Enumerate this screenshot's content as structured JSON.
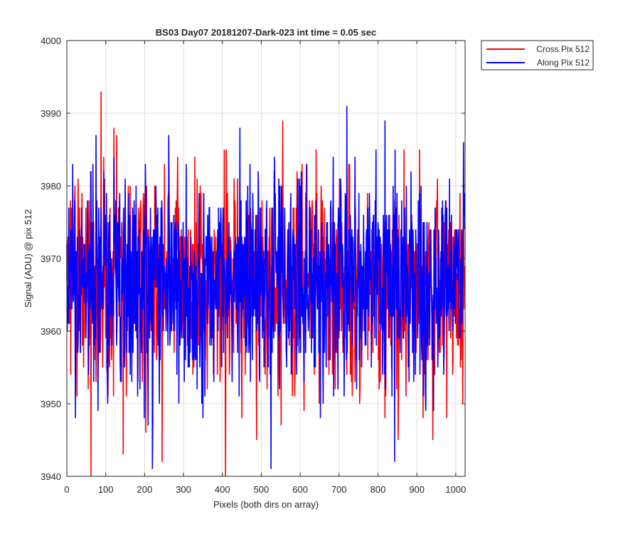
{
  "chart_data": {
    "type": "line",
    "title": "BS03 Day07 20181207-Dark-023 int time = 0.05 sec",
    "xlabel": "Pixels (both dirs on array)",
    "ylabel": "Signal (ADU) @ pix 512",
    "xlim": [
      0,
      1024
    ],
    "ylim": [
      3940,
      4000
    ],
    "xticks": [
      0,
      100,
      200,
      300,
      400,
      500,
      600,
      700,
      800,
      900,
      1000
    ],
    "yticks": [
      3940,
      3950,
      3960,
      3970,
      3980,
      3990,
      4000
    ],
    "grid": true,
    "legend": {
      "placement": "outside-top-right"
    },
    "series": [
      {
        "name": "Cross Pix 512",
        "color": "#ff0000",
        "mean": 3966.5,
        "min": 3940,
        "max": 3993,
        "n_points": 1024,
        "notable_points": [
          {
            "x": 62,
            "y": 3940
          },
          {
            "x": 88,
            "y": 3993
          },
          {
            "x": 128,
            "y": 3987
          },
          {
            "x": 145,
            "y": 3943
          },
          {
            "x": 245,
            "y": 3942
          },
          {
            "x": 408,
            "y": 3940
          },
          {
            "x": 555,
            "y": 3989
          },
          {
            "x": 852,
            "y": 3945
          }
        ]
      },
      {
        "name": "Along Pix 512",
        "color": "#0000ff",
        "mean": 3966.5,
        "min": 3941,
        "max": 3991,
        "n_points": 1024,
        "notable_points": [
          {
            "x": 220,
            "y": 3941
          },
          {
            "x": 262,
            "y": 3987
          },
          {
            "x": 445,
            "y": 3988
          },
          {
            "x": 525,
            "y": 3941
          },
          {
            "x": 720,
            "y": 3991
          },
          {
            "x": 818,
            "y": 3989
          },
          {
            "x": 843,
            "y": 3942
          },
          {
            "x": 1020,
            "y": 3986
          }
        ]
      }
    ]
  }
}
